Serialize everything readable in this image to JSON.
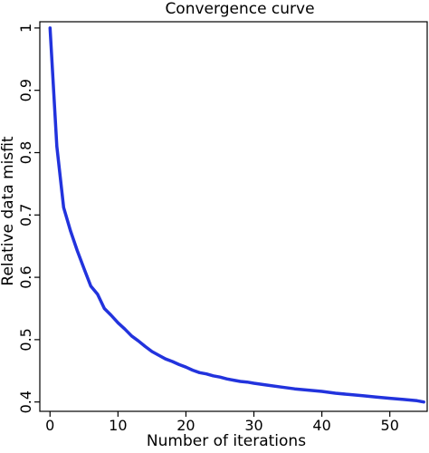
{
  "chart_data": {
    "type": "line",
    "title": "Convergence curve",
    "xlabel": "Number of iterations",
    "ylabel": "Relative data misfit",
    "xlim": [
      -1.5,
      55.5
    ],
    "ylim": [
      0.385,
      1.01
    ],
    "xticks": [
      0,
      10,
      20,
      30,
      40,
      50
    ],
    "yticks": [
      0.4,
      0.5,
      0.6,
      0.7,
      0.8,
      0.9,
      1
    ],
    "ytick_labels": [
      "0.4",
      "0.5",
      "0.6",
      "0.7",
      "0.8",
      "0.9",
      "1"
    ],
    "grid": false,
    "series": [
      {
        "color": "#2233dd",
        "x": [
          0,
          1,
          2,
          3,
          4,
          5,
          6,
          7,
          8,
          9,
          10,
          11,
          12,
          13,
          14,
          15,
          16,
          17,
          18,
          19,
          20,
          21,
          22,
          23,
          24,
          25,
          26,
          27,
          28,
          29,
          30,
          32,
          34,
          36,
          38,
          40,
          42,
          44,
          46,
          48,
          50,
          52,
          54,
          55
        ],
        "y": [
          1.0,
          0.81,
          0.712,
          0.675,
          0.643,
          0.614,
          0.586,
          0.573,
          0.55,
          0.539,
          0.527,
          0.517,
          0.506,
          0.498,
          0.489,
          0.481,
          0.475,
          0.469,
          0.465,
          0.46,
          0.456,
          0.451,
          0.447,
          0.445,
          0.442,
          0.44,
          0.437,
          0.435,
          0.433,
          0.432,
          0.43,
          0.427,
          0.424,
          0.421,
          0.419,
          0.417,
          0.414,
          0.412,
          0.41,
          0.408,
          0.406,
          0.404,
          0.402,
          0.4
        ]
      }
    ]
  }
}
